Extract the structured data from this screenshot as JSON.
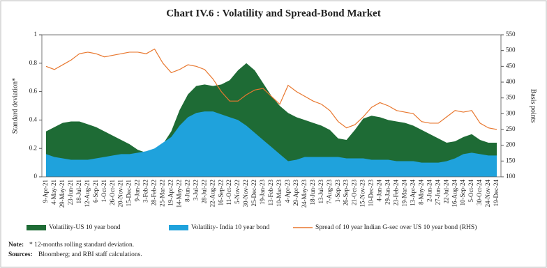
{
  "chart_data": {
    "type": "area",
    "title": "Chart IV.6 : Volatility and Spread-Bond Market",
    "ylabel": "Standard deviation*",
    "y2label": "Basis points",
    "categories": [
      "9-Apr-21",
      "4-May-21",
      "29-May-21",
      "23-Jun-21",
      "18-Jul-21",
      "12-Aug-21",
      "6-Sep-21",
      "1-Oct-21",
      "26-Oct-21",
      "20-Nov-21",
      "15-Dec-21",
      "9-Jan-22",
      "3-Feb-22",
      "28-Feb-22",
      "25-Mar-22",
      "19-Apr-22",
      "14-May-22",
      "8-Jun-22",
      "3-Jul-22",
      "28-Jul-22",
      "22-Aug-22",
      "16-Sep-22",
      "11-Oct-22",
      "5-Nov-22",
      "30-Nov-22",
      "25-Dec-22",
      "19-Jan-23",
      "13-Feb-23",
      "10-Mar-23",
      "4-Apr-23",
      "29-Apr-23",
      "24-May-23",
      "18-Jun-23",
      "13-Jul-23",
      "7-Aug-23",
      "1-Sep-23",
      "26-Sep-23",
      "21-Oct-23",
      "15-Nov-23",
      "10-Dec-23",
      "4-Jan-24",
      "29-Jan-24",
      "23-Feb-24",
      "19-Mar-24",
      "13-Apr-24",
      "8-May-24",
      "2-Jun-24",
      "27-Jun-24",
      "22-Jul-24",
      "16-Aug-24",
      "10-Sep-24",
      "5-Oct-24",
      "30-Oct-24",
      "24-Nov-24",
      "19-Dec-24"
    ],
    "series": [
      {
        "name": "Volatility-US 10 year bond",
        "color": "#1e6b35",
        "type": "area",
        "values": [
          0.32,
          0.35,
          0.38,
          0.39,
          0.39,
          0.37,
          0.35,
          0.32,
          0.29,
          0.26,
          0.23,
          0.19,
          0.17,
          0.18,
          0.23,
          0.32,
          0.47,
          0.58,
          0.64,
          0.65,
          0.64,
          0.65,
          0.68,
          0.75,
          0.8,
          0.75,
          0.66,
          0.57,
          0.5,
          0.45,
          0.42,
          0.4,
          0.38,
          0.36,
          0.33,
          0.27,
          0.26,
          0.33,
          0.41,
          0.43,
          0.42,
          0.4,
          0.39,
          0.38,
          0.36,
          0.33,
          0.3,
          0.27,
          0.24,
          0.25,
          0.28,
          0.3,
          0.26,
          0.24,
          0.24
        ]
      },
      {
        "name": "Volatility- India 10 year bond",
        "color": "#1fa2dc",
        "type": "area",
        "values": [
          0.16,
          0.14,
          0.13,
          0.12,
          0.12,
          0.12,
          0.13,
          0.14,
          0.15,
          0.16,
          0.16,
          0.17,
          0.18,
          0.2,
          0.24,
          0.28,
          0.36,
          0.42,
          0.45,
          0.46,
          0.46,
          0.44,
          0.42,
          0.4,
          0.36,
          0.31,
          0.26,
          0.21,
          0.16,
          0.11,
          0.12,
          0.14,
          0.14,
          0.14,
          0.14,
          0.14,
          0.13,
          0.13,
          0.13,
          0.12,
          0.12,
          0.12,
          0.11,
          0.11,
          0.11,
          0.1,
          0.1,
          0.1,
          0.11,
          0.13,
          0.16,
          0.17,
          0.16,
          0.15,
          0.15
        ]
      },
      {
        "name": "Spread of 10 year Indian G-sec over US 10 year bond (RHS)",
        "color": "#e8772e",
        "type": "line",
        "axis": "y2",
        "values": [
          450,
          440,
          455,
          470,
          490,
          495,
          490,
          480,
          485,
          490,
          495,
          495,
          490,
          505,
          460,
          430,
          440,
          455,
          450,
          440,
          410,
          370,
          340,
          340,
          360,
          375,
          380,
          355,
          330,
          390,
          370,
          355,
          340,
          330,
          310,
          275,
          255,
          265,
          290,
          320,
          335,
          325,
          310,
          305,
          300,
          275,
          270,
          270,
          290,
          310,
          305,
          310,
          270,
          255,
          250
        ]
      }
    ],
    "ylim": [
      0,
      1
    ],
    "yticks": [
      0,
      0.2,
      0.4,
      0.6,
      0.8,
      1
    ],
    "y2lim": [
      100,
      550
    ],
    "y2ticks": [
      100,
      150,
      200,
      250,
      300,
      350,
      400,
      450,
      500,
      550
    ],
    "legend": "bottom",
    "note_label": "Note:",
    "note": "* 12-months rolling standard deviation.",
    "source_label": "Sources:",
    "source": "Bloomberg; and RBI staff calculations."
  }
}
